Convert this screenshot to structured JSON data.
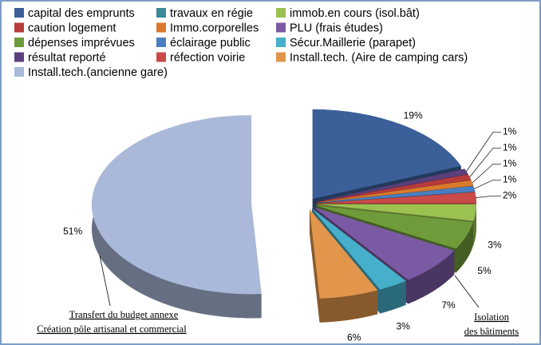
{
  "chart_data": {
    "type": "pie",
    "categories": [
      "capital des emprunts",
      "travaux en régie",
      "immob.en cours (isol.bât)",
      "caution logement",
      "Immo.corporelles",
      "PLU (frais études)",
      "dépenses imprévues",
      "éclairage public",
      "Sécur.Maillerie (parapet)",
      "résultat reporté",
      "réfection voirie",
      "Install.tech. (Aire de camping cars)",
      "Install.tech.(ancienne gare)"
    ],
    "values": [
      19,
      0,
      3,
      1,
      1,
      7,
      5,
      1,
      3,
      1,
      2,
      6,
      51
    ],
    "value_labels": [
      "19%",
      null,
      "3%",
      "1%",
      "1%",
      "7%",
      "5%",
      "1%",
      "3%",
      "1%",
      "2%",
      "6%",
      "51%"
    ],
    "colors": [
      "#3b5f98",
      "#3a8a9a",
      "#9bc151",
      "#b83b3b",
      "#da7a2c",
      "#7b5aa4",
      "#6f9b3a",
      "#4a7ec1",
      "#46afca",
      "#5b3f7b",
      "#c94a48",
      "#e1964c",
      "#aab9d9"
    ],
    "annotations": [
      "Transfert du budget annexe",
      "Création pôle artisanal et commercial",
      "Isolation",
      "des bâtiments"
    ]
  }
}
